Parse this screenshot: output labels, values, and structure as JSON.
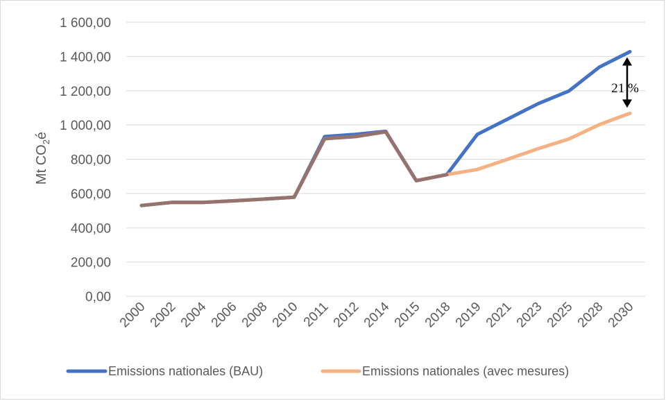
{
  "chart_data": {
    "type": "line",
    "ylabel_main": "Mt CO",
    "ylabel_sub": "2",
    "ylabel_tail": "é",
    "ylim": [
      0,
      1600
    ],
    "yticks": [
      "0,00",
      "200,00",
      "400,00",
      "600,00",
      "800,00",
      "1 000,00",
      "1 200,00",
      "1 400,00",
      "1 600,00"
    ],
    "ytick_values": [
      0,
      200,
      400,
      600,
      800,
      1000,
      1200,
      1400,
      1600
    ],
    "categories": [
      "2000",
      "2002",
      "2004",
      "2006",
      "2008",
      "2010",
      "2011",
      "2012",
      "2014",
      "2015",
      "2018",
      "2019",
      "2021",
      "2023",
      "2025",
      "2028",
      "2030"
    ],
    "grid": true,
    "legend_position": "bottom",
    "series": [
      {
        "name": "Emissions nationales (BAU)",
        "color": "#4472c4",
        "values": [
          530,
          548,
          548,
          557,
          567,
          578,
          932,
          945,
          963,
          675,
          710,
          945,
          1035,
          1125,
          1198,
          1338,
          1428
        ]
      },
      {
        "name": "Emissions nationales (avec mesures)",
        "color": "#f4b183",
        "values": [
          530,
          548,
          548,
          557,
          567,
          578,
          920,
          932,
          960,
          675,
          710,
          740,
          800,
          862,
          918,
          1002,
          1068
        ]
      }
    ],
    "overlap_color": "#8c6b6b",
    "annotation": {
      "text": "21 %"
    }
  }
}
